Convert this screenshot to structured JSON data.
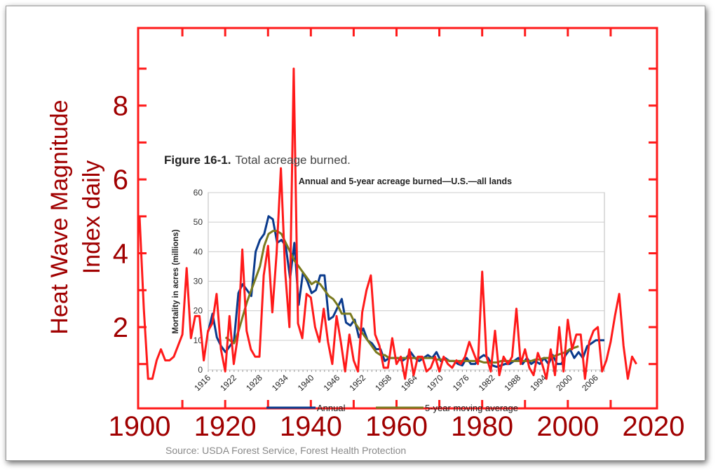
{
  "chart_data": [
    {
      "type": "line",
      "name": "heat-wave",
      "ylabel_lines": [
        "Heat Wave Magnitude",
        "Index daily"
      ],
      "xlim": [
        1900,
        2020
      ],
      "ylim": [
        -0.2,
        10.1
      ],
      "xticks": [
        1900,
        1920,
        1940,
        1960,
        1980,
        2000,
        2020
      ],
      "yticks": [
        2,
        4,
        6,
        8
      ],
      "grid": false,
      "color": "#ff1a1a",
      "label_color": "#a00000",
      "x": [
        1900,
        1901,
        1902,
        1903,
        1904,
        1905,
        1906,
        1907,
        1908,
        1909,
        1910,
        1911,
        1912,
        1913,
        1914,
        1915,
        1916,
        1917,
        1918,
        1919,
        1920,
        1921,
        1922,
        1923,
        1924,
        1925,
        1926,
        1927,
        1928,
        1929,
        1930,
        1931,
        1932,
        1933,
        1934,
        1935,
        1936,
        1937,
        1938,
        1939,
        1940,
        1941,
        1942,
        1943,
        1944,
        1945,
        1946,
        1947,
        1948,
        1949,
        1950,
        1951,
        1952,
        1953,
        1954,
        1955,
        1956,
        1957,
        1958,
        1959,
        1960,
        1961,
        1962,
        1963,
        1964,
        1965,
        1966,
        1967,
        1968,
        1969,
        1970,
        1971,
        1972,
        1973,
        1974,
        1975,
        1976,
        1977,
        1978,
        1979,
        1980,
        1981,
        1982,
        1983,
        1984,
        1985,
        1986,
        1987,
        1988,
        1989,
        1990,
        1991,
        1992,
        1993,
        1994,
        1995,
        1996,
        1997,
        1998,
        1999,
        2000,
        2001,
        2002,
        2003,
        2004,
        2005,
        2006,
        2007,
        2008,
        2009,
        2010,
        2011,
        2012,
        2013,
        2014,
        2015,
        2016
      ],
      "values": [
        5.0,
        2.5,
        0.6,
        0.6,
        1.1,
        1.4,
        1.1,
        1.1,
        1.2,
        1.5,
        1.8,
        3.6,
        1.7,
        2.3,
        2.3,
        1.1,
        1.9,
        2.1,
        2.9,
        1.4,
        0.8,
        2.3,
        1.0,
        1.8,
        4.1,
        1.9,
        1.4,
        1.2,
        1.2,
        3.4,
        4.2,
        2.4,
        4.0,
        6.3,
        3.5,
        2.0,
        9.0,
        2.1,
        1.7,
        2.9,
        2.8,
        2.0,
        1.6,
        2.5,
        1.6,
        1.0,
        2.3,
        1.6,
        0.8,
        1.8,
        1.1,
        0.8,
        2.4,
        3.0,
        3.4,
        1.8,
        1.5,
        0.9,
        0.9,
        1.7,
        1.0,
        1.2,
        0.6,
        1.4,
        0.7,
        1.2,
        1.2,
        0.8,
        0.9,
        1.2,
        0.8,
        1.2,
        1.0,
        0.9,
        1.1,
        1.0,
        1.2,
        1.6,
        1.3,
        1.0,
        3.5,
        1.2,
        0.8,
        1.9,
        0.7,
        1.2,
        1.0,
        1.2,
        2.5,
        1.0,
        1.4,
        0.9,
        0.7,
        1.3,
        1.0,
        0.6,
        1.4,
        0.7,
        2.0,
        0.8,
        2.2,
        1.4,
        1.8,
        1.8,
        0.6,
        1.6,
        1.9,
        2.0,
        0.8,
        1.1,
        1.6,
        2.3,
        2.9,
        1.5,
        0.6,
        1.2,
        1.0
      ]
    },
    {
      "type": "line",
      "name": "acreage-burned",
      "figure_label": "Figure 16-1.",
      "figure_title": "Total acreage burned.",
      "title": "Annual and 5-year acreage burned—U.S.—all lands",
      "ylabel": "Mortality in acres (millions)",
      "source": "Source: USDA Forest Service, Forest Health Protection",
      "xlim": [
        1916,
        2008
      ],
      "ylim": [
        0,
        60
      ],
      "yticks": [
        0,
        10,
        20,
        30,
        40,
        50,
        60
      ],
      "xticks": [
        "1916",
        "1922",
        "1928",
        "1934",
        "1940",
        "1946",
        "1952",
        "1958",
        "1964",
        "1970",
        "1976",
        "1982",
        "1988",
        "1994",
        "2000",
        "2006"
      ],
      "grid": true,
      "legend_position": "bottom",
      "series": [
        {
          "name": "Annual",
          "color": "#0a3a8c",
          "x_start": 1916,
          "values": [
            13,
            19,
            11,
            8,
            6,
            8,
            10,
            26,
            29,
            27,
            25,
            40,
            44,
            46,
            52,
            51,
            43,
            44,
            42,
            31,
            43,
            22,
            33,
            30,
            26,
            27,
            32,
            32,
            17,
            18,
            21,
            24,
            16,
            15,
            17,
            11,
            14,
            10,
            9,
            7,
            7,
            3,
            4,
            4,
            4,
            3,
            4,
            6,
            4,
            3,
            4,
            5,
            4,
            6,
            3,
            4,
            3,
            3,
            2,
            1.5,
            4,
            2,
            2,
            4,
            5,
            4,
            1.5,
            1,
            1.5,
            2,
            2,
            3,
            4,
            2,
            4,
            2,
            3,
            2,
            4,
            2,
            5,
            2,
            2,
            5,
            7,
            4,
            6,
            4,
            8,
            9,
            10,
            10,
            10
          ]
        },
        {
          "name": "5-year moving average",
          "color": "#7a7a1e",
          "x_start": 1920,
          "values": [
            11,
            10,
            9,
            13,
            18,
            23,
            27,
            31,
            35,
            42,
            46,
            47,
            47,
            46,
            43,
            40,
            37,
            35,
            33,
            31,
            29,
            30,
            29,
            27,
            25,
            24,
            22,
            19,
            19,
            19,
            16,
            14,
            12,
            10,
            8,
            6,
            5,
            5,
            4,
            4,
            4,
            4,
            4,
            4,
            4,
            4,
            4,
            4,
            4,
            3.5,
            3.5,
            3.5,
            3,
            3,
            3,
            3,
            3,
            3,
            3,
            3,
            2.5,
            2.5,
            2.5,
            2.5,
            3,
            3,
            3,
            3,
            3,
            3,
            3,
            3,
            3.5,
            3.5,
            4,
            4,
            4.5,
            5,
            5.5,
            6,
            7,
            7.5,
            8
          ]
        }
      ]
    }
  ]
}
